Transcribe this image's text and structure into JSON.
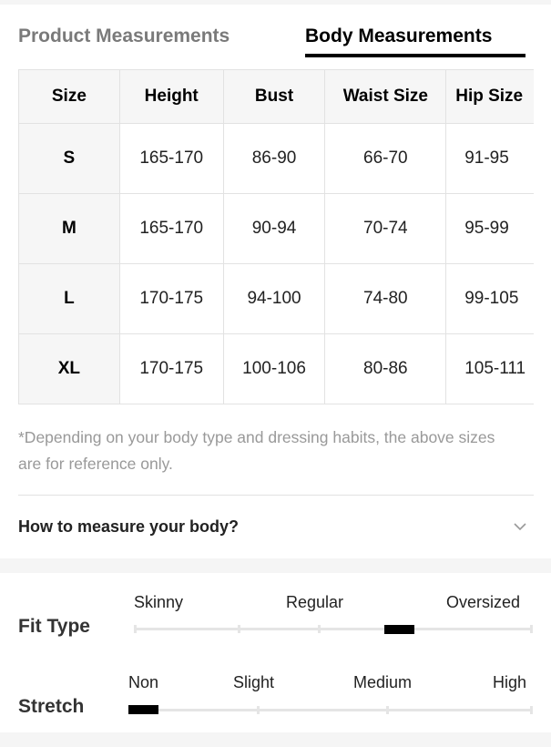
{
  "tabs": [
    {
      "label": "Product Measurements",
      "active": false
    },
    {
      "label": "Body Measurements",
      "active": true
    }
  ],
  "table": {
    "headers": [
      "Size",
      "Height",
      "Bust",
      "Waist Size",
      "Hip Size"
    ],
    "rows": [
      [
        "S",
        "165-170",
        "86-90",
        "66-70",
        "91-95"
      ],
      [
        "M",
        "165-170",
        "90-94",
        "70-74",
        "95-99"
      ],
      [
        "L",
        "170-175",
        "94-100",
        "74-80",
        "99-105"
      ],
      [
        "XL",
        "170-175",
        "100-106",
        "80-86",
        "105-111"
      ]
    ]
  },
  "note": "*Depending on your body type and dressing habits, the above sizes are for reference only.",
  "how_to_measure": {
    "label": "How to measure your body?",
    "icon": "chevron-down-icon"
  },
  "fit_type": {
    "label": "Fit Type",
    "options": [
      "Skinny",
      "Regular",
      "Oversized"
    ],
    "scale_steps": 5,
    "selected_step": 4
  },
  "stretch": {
    "label": "Stretch",
    "options": [
      "Non",
      "Slight",
      "Medium",
      "High"
    ],
    "scale_steps": 4,
    "selected_step": 1
  }
}
